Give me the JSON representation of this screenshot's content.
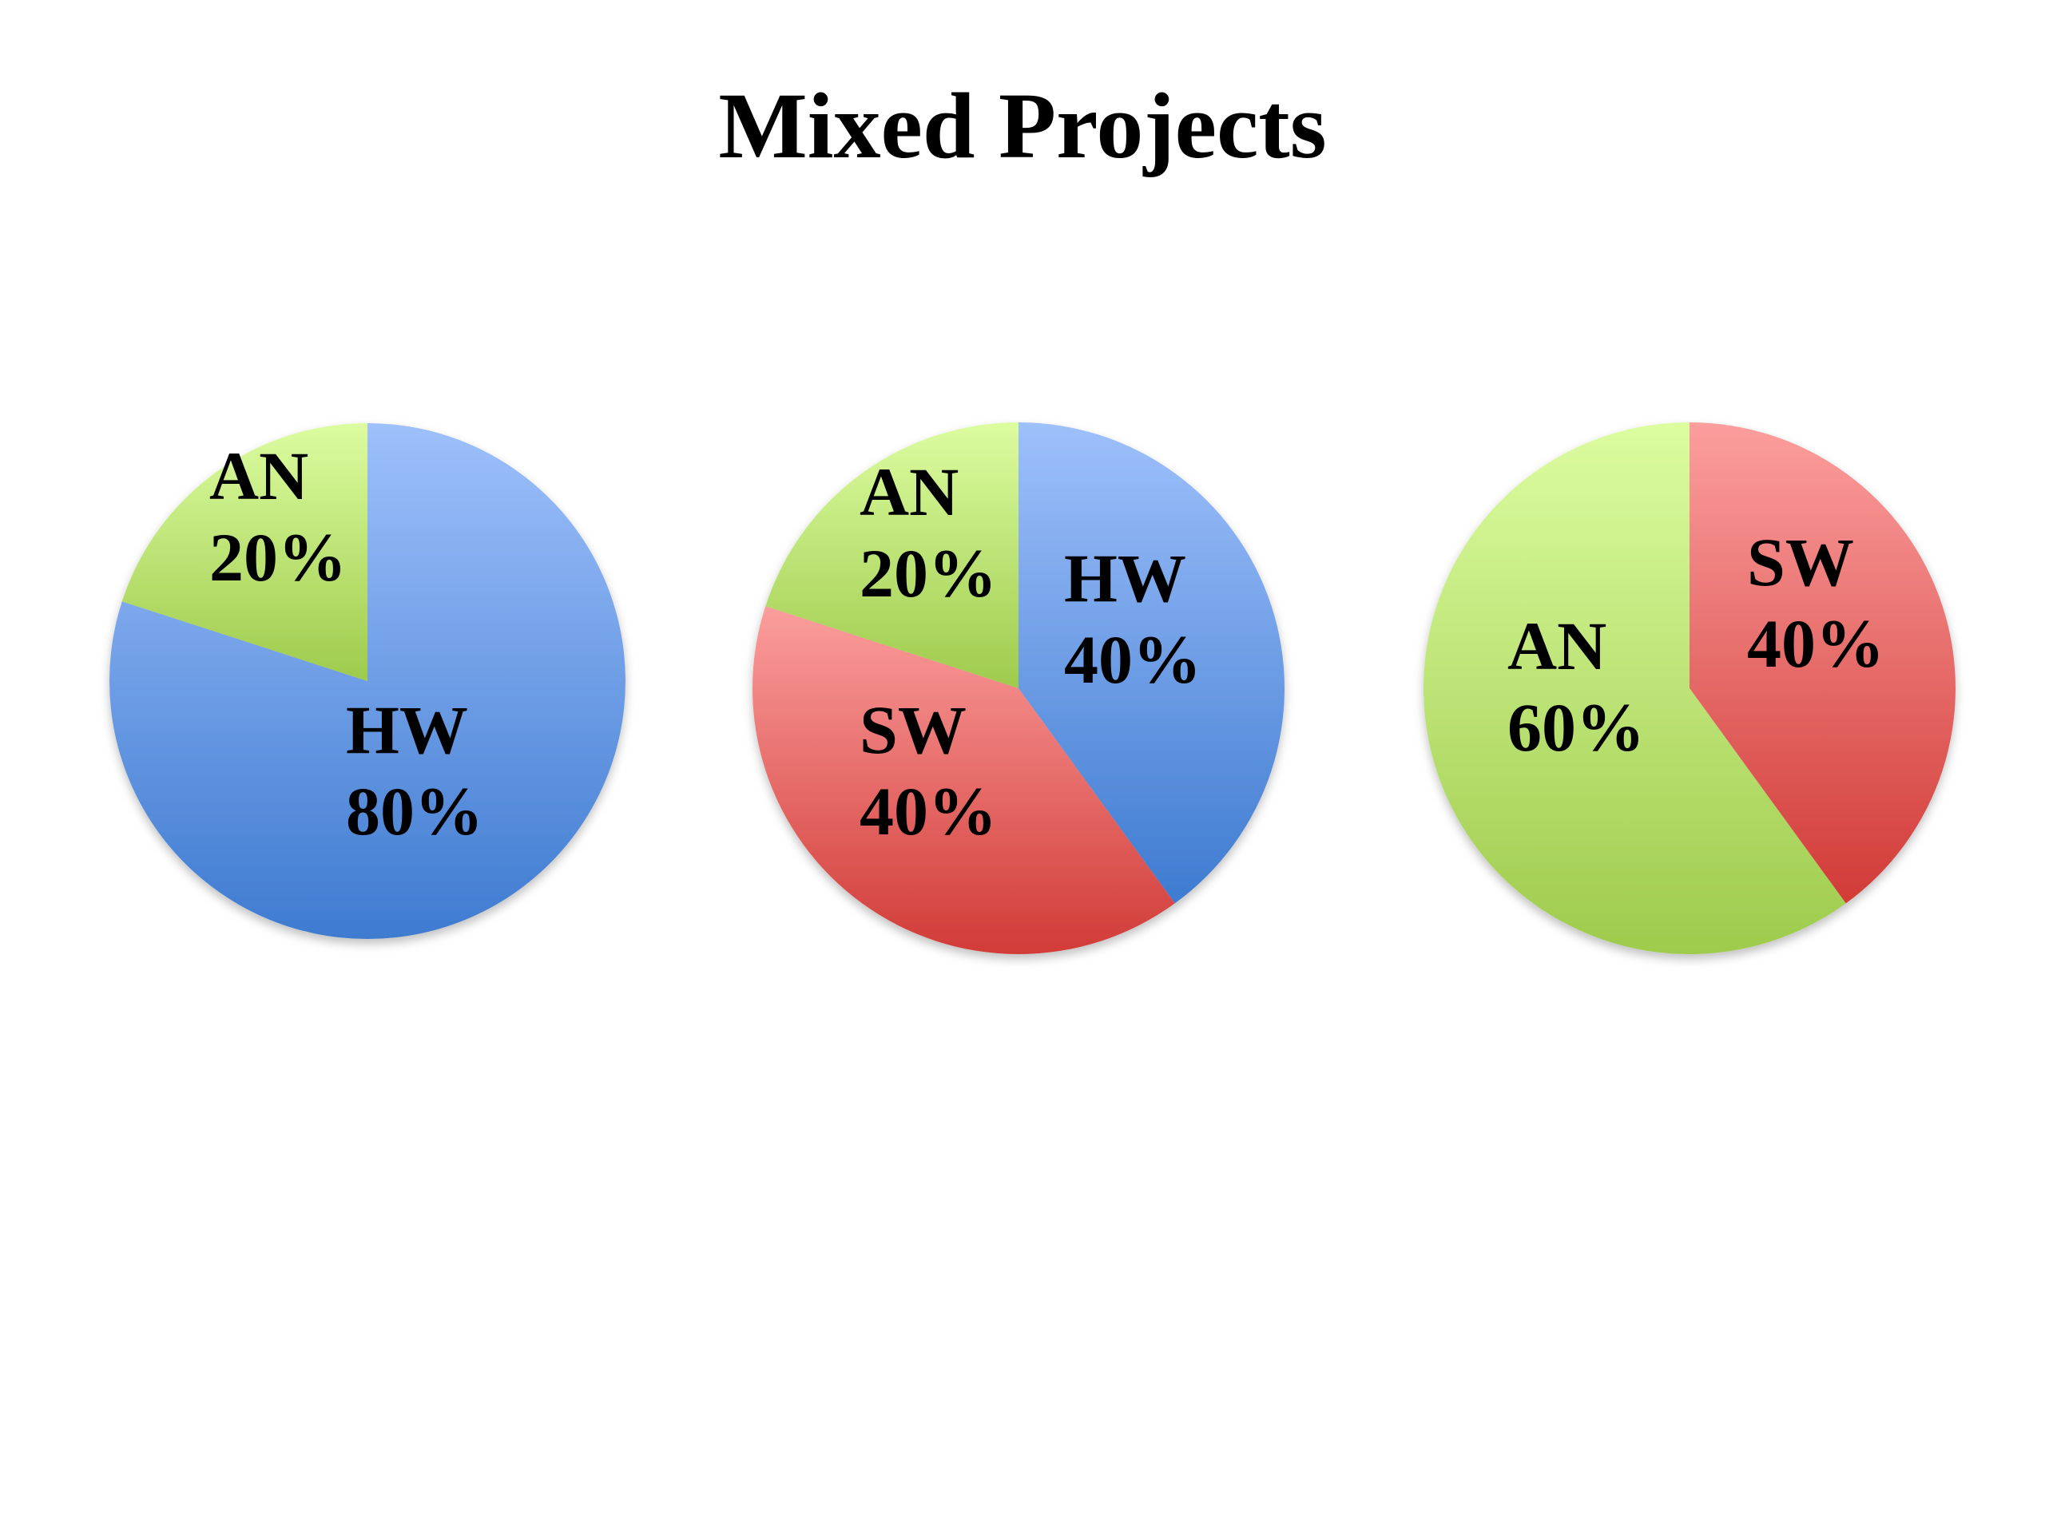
{
  "slide": {
    "title": "Mixed Projects"
  },
  "colors": {
    "HW": {
      "light": "#9ec0fb",
      "dark": "#3e7bd0"
    },
    "SW": {
      "light": "#fb9e9d",
      "dark": "#d13b37"
    },
    "AN": {
      "light": "#dcfca0",
      "dark": "#9ecb4c"
    }
  },
  "chart_data": [
    {
      "type": "pie",
      "title": "",
      "categories": [
        "HW",
        "AN"
      ],
      "values": [
        80,
        20
      ],
      "labels": [
        {
          "name": "HW",
          "percent": "80%"
        },
        {
          "name": "AN",
          "percent": "20%"
        }
      ],
      "start_angle_deg": 0,
      "direction": "clockwise",
      "legend": "none (labels on slices)"
    },
    {
      "type": "pie",
      "title": "",
      "categories": [
        "HW",
        "SW",
        "AN"
      ],
      "values": [
        40,
        40,
        20
      ],
      "labels": [
        {
          "name": "HW",
          "percent": "40%"
        },
        {
          "name": "SW",
          "percent": "40%"
        },
        {
          "name": "AN",
          "percent": "20%"
        }
      ],
      "start_angle_deg": 0,
      "direction": "clockwise",
      "legend": "none (labels on slices)"
    },
    {
      "type": "pie",
      "title": "",
      "categories": [
        "SW",
        "AN"
      ],
      "values": [
        40,
        60
      ],
      "labels": [
        {
          "name": "SW",
          "percent": "40%"
        },
        {
          "name": "AN",
          "percent": "60%"
        }
      ],
      "start_angle_deg": 0,
      "direction": "clockwise",
      "legend": "none (labels on slices)"
    }
  ]
}
